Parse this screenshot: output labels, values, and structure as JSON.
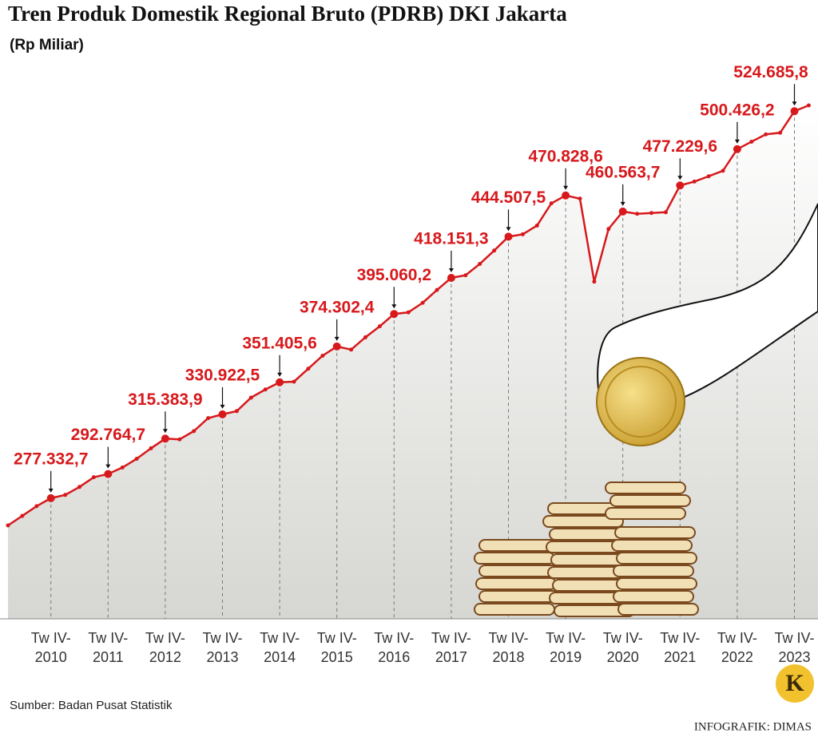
{
  "chart_data": {
    "type": "line",
    "title": "Tren Produk Domestik Regional Bruto (PDRB) DKI Jakarta",
    "subtitle": "(Rp Miliar)",
    "source": "Sumber: Badan Pusat Statistik",
    "credit": "INFOGRAFIK: DIMAS",
    "logo": "K",
    "color": "#d7191c",
    "grid": true,
    "categories": [
      null,
      null,
      null,
      "Tw IV-2010",
      null,
      null,
      null,
      "Tw IV-2011",
      null,
      null,
      null,
      "Tw IV-2012",
      null,
      null,
      null,
      "Tw IV-2013",
      null,
      null,
      null,
      "Tw IV-2014",
      null,
      null,
      null,
      "Tw IV-2015",
      null,
      null,
      null,
      "Tw IV-2016",
      null,
      null,
      null,
      "Tw IV-2017",
      null,
      null,
      null,
      "Tw IV-2018",
      null,
      null,
      null,
      "Tw IV-2019",
      null,
      null,
      null,
      "Tw IV-2020",
      null,
      null,
      null,
      "Tw IV-2021",
      null,
      null,
      null,
      "Tw IV-2022",
      null,
      null,
      null,
      "Tw IV-2023",
      null
    ],
    "values": [
      259900,
      266000,
      272200,
      277332.7,
      279400,
      284500,
      290700,
      292764.7,
      296900,
      302500,
      309200,
      315383.9,
      314900,
      320200,
      328500,
      330922.5,
      333000,
      341600,
      346800,
      351405.6,
      351800,
      360100,
      368400,
      374302.4,
      372300,
      380200,
      387200,
      395060.2,
      396100,
      402200,
      410400,
      418151.3,
      419800,
      427100,
      435600,
      444507.5,
      446000,
      451600,
      465800,
      470828.6,
      468800,
      415700,
      449400,
      460563.7,
      459100,
      459600,
      460100,
      477229.6,
      479700,
      483100,
      486600,
      500426.2,
      505200,
      509900,
      510900,
      524685.8,
      528400
    ],
    "value_labels": [
      null,
      null,
      null,
      "277.332,7",
      null,
      null,
      null,
      "292.764,7",
      null,
      null,
      null,
      "315.383,9",
      null,
      null,
      null,
      "330.922,5",
      null,
      null,
      null,
      "351.405,6",
      null,
      null,
      null,
      "374.302,4",
      null,
      null,
      null,
      "395.060,2",
      null,
      null,
      null,
      "418.151,3",
      null,
      null,
      null,
      "444.507,5",
      null,
      null,
      null,
      "470.828,6",
      null,
      null,
      null,
      "460.563,7",
      null,
      null,
      null,
      "477.229,6",
      null,
      null,
      null,
      "500.426,2",
      null,
      null,
      null,
      "524.685,8",
      null
    ]
  }
}
